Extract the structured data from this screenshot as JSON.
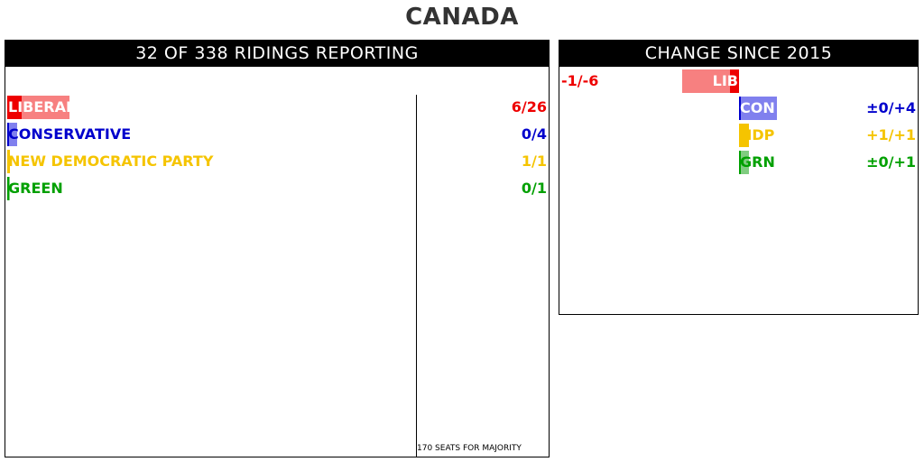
{
  "title": "CANADA",
  "colors": {
    "LIBERAL": "#ee0000",
    "LIBERAL_LIGHT": "#f78080",
    "CONSERVATIVE": "#0000cc",
    "CONSERVATIVE_LIGHT": "#8080ee",
    "NDP": "#f5c400",
    "NDP_LIGHT": "#f5c400",
    "GREEN": "#00a000",
    "GREEN_LIGHT": "#80cc80"
  },
  "chart_data": [
    {
      "type": "bar",
      "title": "32 OF 338 RIDINGS REPORTING",
      "majority_label": "170 SEATS FOR MAJORITY",
      "majority_seats": 170,
      "xlim": [
        0,
        200
      ],
      "series": [
        {
          "name": "LIBERAL",
          "party": "LIBERAL",
          "elected": 6,
          "elected_plus_leading": 26,
          "value_label": "6/26"
        },
        {
          "name": "CONSERVATIVE",
          "party": "CONSERVATIVE",
          "elected": 0,
          "elected_plus_leading": 4,
          "value_label": "0/4"
        },
        {
          "name": "NEW DEMOCRATIC PARTY",
          "party": "NDP",
          "elected": 1,
          "elected_plus_leading": 1,
          "value_label": "1/1"
        },
        {
          "name": "GREEN",
          "party": "GREEN",
          "elected": 0,
          "elected_plus_leading": 1,
          "value_label": "0/1"
        }
      ]
    },
    {
      "type": "bar",
      "title": "CHANGE SINCE 2015",
      "series": [
        {
          "name": "LIB",
          "party": "LIBERAL",
          "elected_change": -1,
          "total_change": -6,
          "value_label": "-1/-6"
        },
        {
          "name": "CON",
          "party": "CONSERVATIVE",
          "elected_change": 0,
          "total_change": 4,
          "value_label": "±0/+4"
        },
        {
          "name": "NDP",
          "party": "NDP",
          "elected_change": 1,
          "total_change": 1,
          "value_label": "+1/+1"
        },
        {
          "name": "GRN",
          "party": "GREEN",
          "elected_change": 0,
          "total_change": 1,
          "value_label": "±0/+1"
        }
      ]
    }
  ]
}
